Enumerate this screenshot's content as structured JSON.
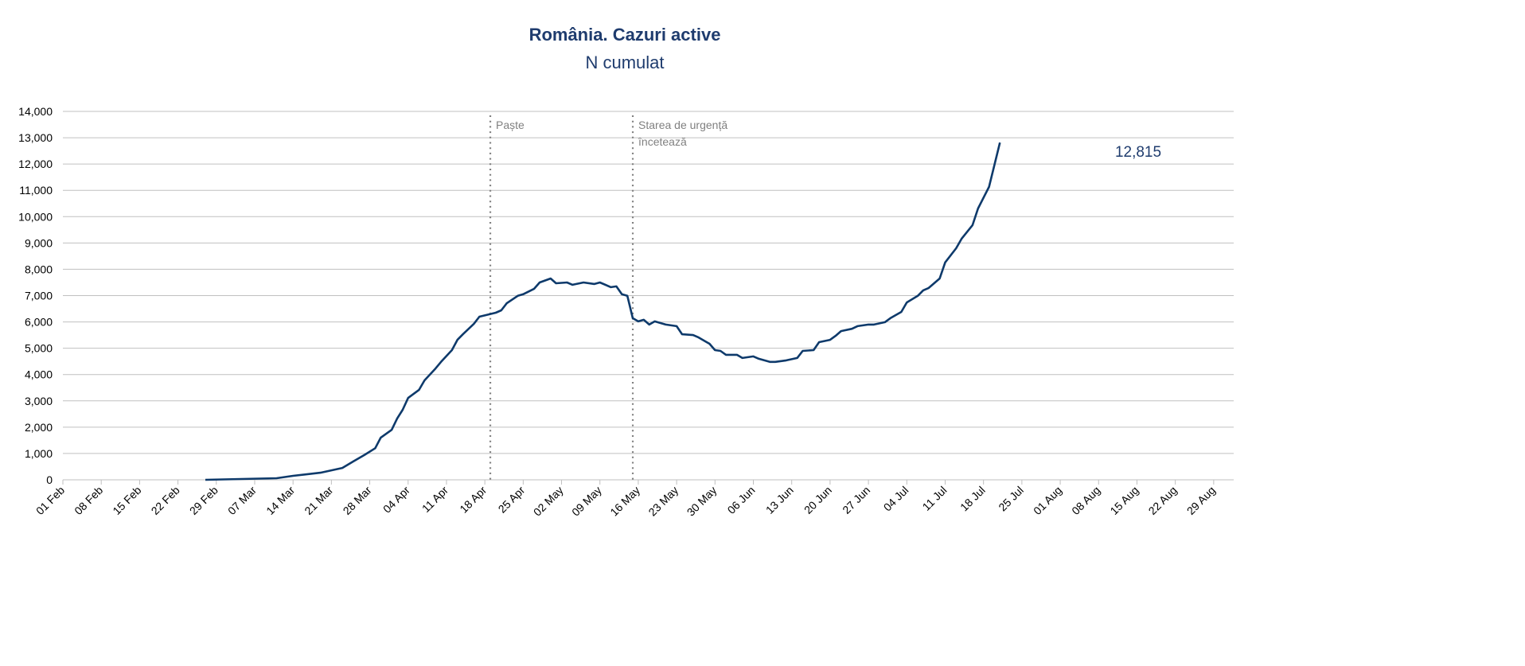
{
  "chart_data": {
    "type": "line",
    "title": "România. Cazuri active",
    "subtitle": "N cumulat",
    "xlabel": "",
    "ylabel": "",
    "ylim": [
      0,
      14000
    ],
    "yticks": [
      "0",
      "1,000",
      "2,000",
      "3,000",
      "4,000",
      "5,000",
      "6,000",
      "7,000",
      "8,000",
      "9,000",
      "10,000",
      "11,000",
      "12,000",
      "13,000",
      "14,000"
    ],
    "xlim": [
      "2020-02-01",
      "2020-08-31"
    ],
    "xticks": [
      "01 Feb",
      "08 Feb",
      "15 Feb",
      "22 Feb",
      "29 Feb",
      "07 Mar",
      "14 Mar",
      "21 Mar",
      "28 Mar",
      "04 Apr",
      "11 Apr",
      "18 Apr",
      "25 Apr",
      "02 May",
      "09 May",
      "16 May",
      "23 May",
      "30 May",
      "06 Jun",
      "13 Jun",
      "20 Jun",
      "27 Jun",
      "04 Jul",
      "11 Jul",
      "18 Jul",
      "25 Jul",
      "01 Aug",
      "08 Aug",
      "15 Aug",
      "22 Aug",
      "29 Aug"
    ],
    "grid": "horizontal",
    "color": "#0e3a6b",
    "last_value_label": "12,815",
    "annotations": [
      {
        "date": "2020-04-19",
        "lines": [
          "Paște"
        ]
      },
      {
        "date": "2020-05-15",
        "lines": [
          "Starea de urgență",
          "încetează"
        ]
      }
    ],
    "series": [
      {
        "name": "Cazuri active",
        "points": [
          [
            "2020-02-27",
            0
          ],
          [
            "2020-03-11",
            60
          ],
          [
            "2020-03-14",
            150
          ],
          [
            "2020-03-19",
            270
          ],
          [
            "2020-03-23",
            450
          ],
          [
            "2020-03-25",
            700
          ],
          [
            "2020-03-27",
            940
          ],
          [
            "2020-03-29",
            1200
          ],
          [
            "2020-03-30",
            1600
          ],
          [
            "2020-04-01",
            1900
          ],
          [
            "2020-04-02",
            2330
          ],
          [
            "2020-04-03",
            2660
          ],
          [
            "2020-04-04",
            3110
          ],
          [
            "2020-04-06",
            3420
          ],
          [
            "2020-04-07",
            3780
          ],
          [
            "2020-04-09",
            4230
          ],
          [
            "2020-04-10",
            4480
          ],
          [
            "2020-04-12",
            4930
          ],
          [
            "2020-04-13",
            5320
          ],
          [
            "2020-04-14",
            5530
          ],
          [
            "2020-04-16",
            5930
          ],
          [
            "2020-04-17",
            6200
          ],
          [
            "2020-04-20",
            6350
          ],
          [
            "2020-04-21",
            6440
          ],
          [
            "2020-04-22",
            6710
          ],
          [
            "2020-04-24",
            6990
          ],
          [
            "2020-04-25",
            7050
          ],
          [
            "2020-04-27",
            7260
          ],
          [
            "2020-04-28",
            7500
          ],
          [
            "2020-04-30",
            7650
          ],
          [
            "2020-05-01",
            7470
          ],
          [
            "2020-05-03",
            7500
          ],
          [
            "2020-05-04",
            7410
          ],
          [
            "2020-05-06",
            7500
          ],
          [
            "2020-05-08",
            7440
          ],
          [
            "2020-05-09",
            7500
          ],
          [
            "2020-05-11",
            7320
          ],
          [
            "2020-05-12",
            7350
          ],
          [
            "2020-05-13",
            7050
          ],
          [
            "2020-05-14",
            6990
          ],
          [
            "2020-05-15",
            6140
          ],
          [
            "2020-05-16",
            6020
          ],
          [
            "2020-05-17",
            6080
          ],
          [
            "2020-05-18",
            5900
          ],
          [
            "2020-05-19",
            6020
          ],
          [
            "2020-05-21",
            5900
          ],
          [
            "2020-05-23",
            5840
          ],
          [
            "2020-05-24",
            5530
          ],
          [
            "2020-05-26",
            5500
          ],
          [
            "2020-05-27",
            5410
          ],
          [
            "2020-05-29",
            5170
          ],
          [
            "2020-05-30",
            4930
          ],
          [
            "2020-05-31",
            4900
          ],
          [
            "2020-06-01",
            4750
          ],
          [
            "2020-06-03",
            4750
          ],
          [
            "2020-06-04",
            4630
          ],
          [
            "2020-06-06",
            4690
          ],
          [
            "2020-06-07",
            4600
          ],
          [
            "2020-06-09",
            4480
          ],
          [
            "2020-06-10",
            4480
          ],
          [
            "2020-06-12",
            4540
          ],
          [
            "2020-06-14",
            4630
          ],
          [
            "2020-06-15",
            4900
          ],
          [
            "2020-06-17",
            4930
          ],
          [
            "2020-06-18",
            5230
          ],
          [
            "2020-06-20",
            5320
          ],
          [
            "2020-06-21",
            5470
          ],
          [
            "2020-06-22",
            5650
          ],
          [
            "2020-06-24",
            5740
          ],
          [
            "2020-06-25",
            5840
          ],
          [
            "2020-06-27",
            5900
          ],
          [
            "2020-06-28",
            5900
          ],
          [
            "2020-06-30",
            5990
          ],
          [
            "2020-07-01",
            6140
          ],
          [
            "2020-07-03",
            6380
          ],
          [
            "2020-07-04",
            6740
          ],
          [
            "2020-07-06",
            6990
          ],
          [
            "2020-07-07",
            7200
          ],
          [
            "2020-07-08",
            7290
          ],
          [
            "2020-07-10",
            7650
          ],
          [
            "2020-07-11",
            8260
          ],
          [
            "2020-07-13",
            8800
          ],
          [
            "2020-07-14",
            9160
          ],
          [
            "2020-07-16",
            9680
          ],
          [
            "2020-07-17",
            10310
          ],
          [
            "2020-07-19",
            11130
          ],
          [
            "2020-07-21",
            12815
          ]
        ]
      }
    ]
  }
}
